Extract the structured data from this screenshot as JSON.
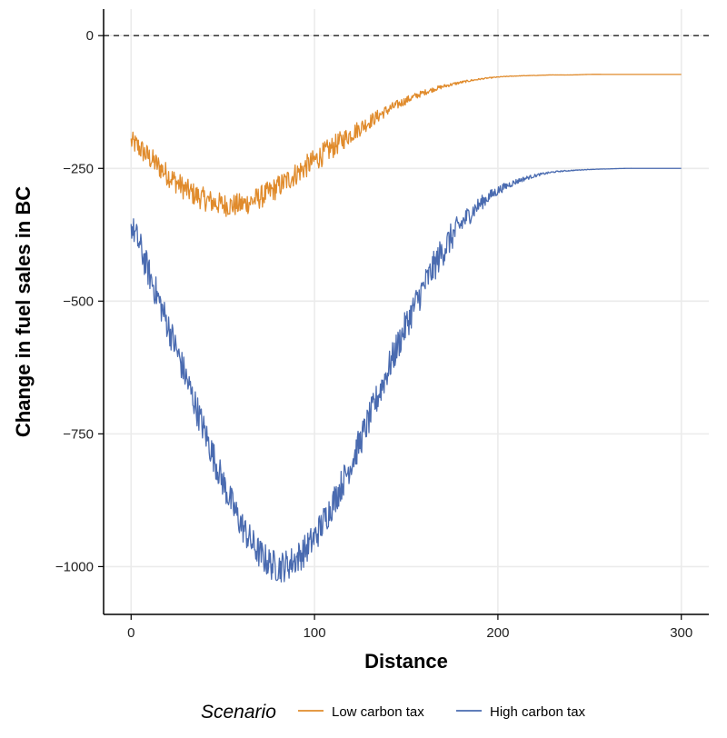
{
  "chart_data": {
    "type": "line",
    "title": "",
    "xlabel": "Distance",
    "ylabel": "Change in fuel sales in BC",
    "xlim": [
      -15,
      315
    ],
    "ylim": [
      -1090,
      50
    ],
    "x_ticks": [
      0,
      100,
      200,
      300
    ],
    "y_ticks": [
      0,
      -250,
      -500,
      -750,
      -1000
    ],
    "x_tick_labels": [
      "0",
      "100",
      "200",
      "300"
    ],
    "y_tick_labels": [
      "0",
      "−250",
      "−500",
      "−750",
      "−1000"
    ],
    "reference_line": {
      "y": 0,
      "style": "dashed"
    },
    "grid": true,
    "legend": {
      "title": "Scenario",
      "position": "bottom"
    },
    "x": [
      0,
      10,
      20,
      30,
      40,
      50,
      60,
      70,
      80,
      90,
      100,
      110,
      120,
      130,
      140,
      150,
      160,
      170,
      180,
      190,
      200,
      210,
      220,
      230,
      240,
      250,
      260,
      270,
      280,
      290,
      300
    ],
    "series": [
      {
        "name": "Low carbon tax",
        "color": "#E08B2C",
        "values": [
          -200,
          -230,
          -262,
          -290,
          -308,
          -318,
          -318,
          -305,
          -285,
          -260,
          -235,
          -210,
          -185,
          -162,
          -140,
          -122,
          -107,
          -96,
          -88,
          -82,
          -78,
          -76,
          -75,
          -74,
          -74,
          -73,
          -73,
          -73,
          -73,
          -73,
          -73
        ]
      },
      {
        "name": "High carbon tax",
        "color": "#4A6BB0",
        "values": [
          -360,
          -450,
          -545,
          -645,
          -745,
          -840,
          -920,
          -975,
          -1000,
          -985,
          -945,
          -880,
          -805,
          -720,
          -630,
          -545,
          -470,
          -405,
          -355,
          -318,
          -292,
          -275,
          -264,
          -257,
          -254,
          -252,
          -251,
          -250,
          -250,
          -250,
          -250
        ]
      }
    ]
  }
}
